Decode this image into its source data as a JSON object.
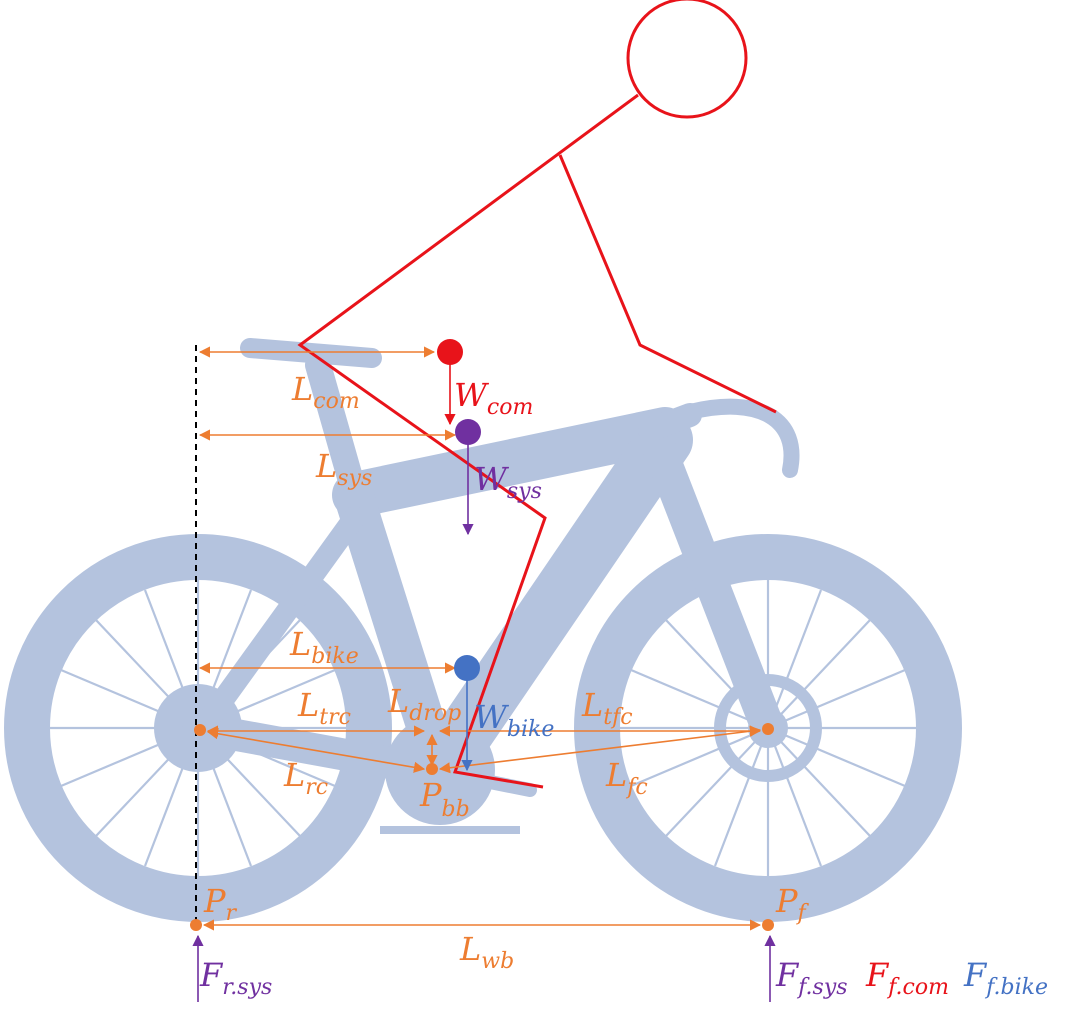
{
  "colors": {
    "bike": "#B4C3DE",
    "rider": "#E8131A",
    "dimension": "#ED7D31",
    "system": "#7030A0",
    "bike_force": "#4472C4",
    "reference_line": "#000000"
  },
  "points": {
    "pr": {
      "main": "P",
      "sub": "r"
    },
    "pf": {
      "main": "P",
      "sub": "f"
    },
    "pbb": {
      "main": "P",
      "sub": "bb"
    }
  },
  "lengths": {
    "com": {
      "main": "L",
      "sub": "com"
    },
    "sys": {
      "main": "L",
      "sub": "sys"
    },
    "bike": {
      "main": "L",
      "sub": "bike"
    },
    "drop": {
      "main": "L",
      "sub": "drop"
    },
    "trc": {
      "main": "L",
      "sub": "trc"
    },
    "tfc": {
      "main": "L",
      "sub": "tfc"
    },
    "rc": {
      "main": "L",
      "sub": "rc"
    },
    "fc": {
      "main": "L",
      "sub": "fc"
    },
    "wb": {
      "main": "L",
      "sub": "wb"
    }
  },
  "weights": {
    "com": {
      "main": "W",
      "sub": "com"
    },
    "sys": {
      "main": "W",
      "sub": "sys"
    },
    "bike": {
      "main": "W",
      "sub": "bike"
    }
  },
  "forces": {
    "r_sys": {
      "main": "F",
      "sub": "r.sys"
    },
    "f_sys": {
      "main": "F",
      "sub": "f.sys"
    },
    "f_com": {
      "main": "F",
      "sub": "f.com"
    },
    "f_bike": {
      "main": "F",
      "sub": "f.bike"
    }
  }
}
